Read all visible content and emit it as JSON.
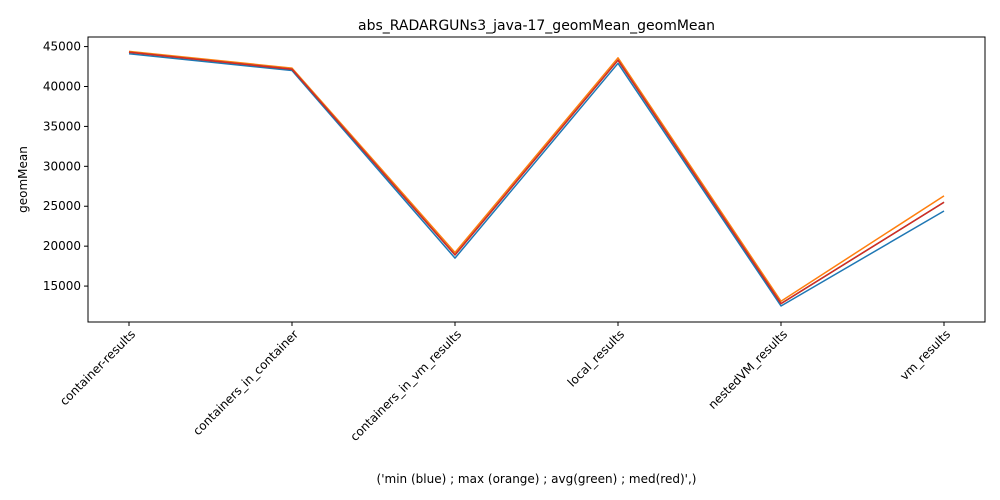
{
  "chart_data": {
    "type": "line",
    "title": "abs_RADARGUNs3_java-17_geomMean_geomMean",
    "xlabel": "('min (blue) ; max (orange) ; avg(green) ; med(red)',)",
    "ylabel": "geomMean",
    "categories": [
      "container-results",
      "containers_in_container",
      "containers_in_vm_results",
      "local_results",
      "nestedVM_results",
      "vm_results"
    ],
    "ylim": [
      10500,
      46200
    ],
    "yticks": [
      15000,
      20000,
      25000,
      30000,
      35000,
      40000,
      45000
    ],
    "grid": false,
    "series": [
      {
        "color": "#1f77b4",
        "values": [
          44100,
          42000,
          18500,
          42900,
          12500,
          24400
        ]
      },
      {
        "color": "#ff7f0e",
        "values": [
          44400,
          42300,
          19200,
          43600,
          13100,
          26300
        ]
      },
      {
        "color": "#2ca02c",
        "values": [
          44300,
          42150,
          18900,
          43300,
          12800,
          25500
        ]
      },
      {
        "color": "#d62728",
        "values": [
          44300,
          42150,
          18900,
          43300,
          12800,
          25500
        ]
      }
    ]
  }
}
